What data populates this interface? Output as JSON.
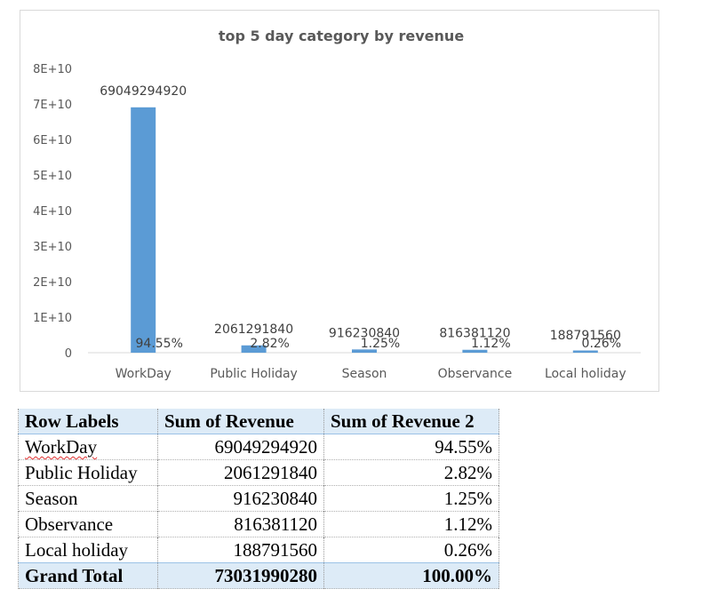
{
  "chart_data": {
    "type": "bar",
    "title": "top 5 day category by revenue",
    "categories": [
      "WorkDay",
      "Public Holiday",
      "Season",
      "Observance",
      "Local holiday"
    ],
    "series": [
      {
        "values": [
          69049294920,
          2061291840,
          916230840,
          816381120,
          188791560
        ]
      }
    ],
    "data_labels": [
      {
        "value": "69049294920",
        "percent": "94.55%"
      },
      {
        "value": "2061291840",
        "percent": "2.82%"
      },
      {
        "value": "916230840",
        "percent": "1.25%"
      },
      {
        "value": "816381120",
        "percent": "1.12%"
      },
      {
        "value": "188791560",
        "percent": "0.26%"
      }
    ],
    "ylim": [
      0,
      80000000000
    ],
    "yticks": [
      "0",
      "1E+10",
      "2E+10",
      "3E+10",
      "4E+10",
      "5E+10",
      "6E+10",
      "7E+10",
      "8E+10"
    ],
    "bar_color": "#5b9bd5",
    "grid": false,
    "legend": "none"
  },
  "table": {
    "headers": [
      "Row Labels",
      "Sum of Revenue",
      "Sum of Revenue 2"
    ],
    "rows": [
      [
        "WorkDay",
        "69049294920",
        "94.55%"
      ],
      [
        "Public Holiday",
        "2061291840",
        "2.82%"
      ],
      [
        "Season",
        "916230840",
        "1.25%"
      ],
      [
        "Observance",
        "816381120",
        "1.12%"
      ],
      [
        "Local holiday",
        "188791560",
        "0.26%"
      ]
    ],
    "total": [
      "Grand Total",
      "73031990280",
      "100.00%"
    ],
    "header_fill": "#ddebf7"
  }
}
